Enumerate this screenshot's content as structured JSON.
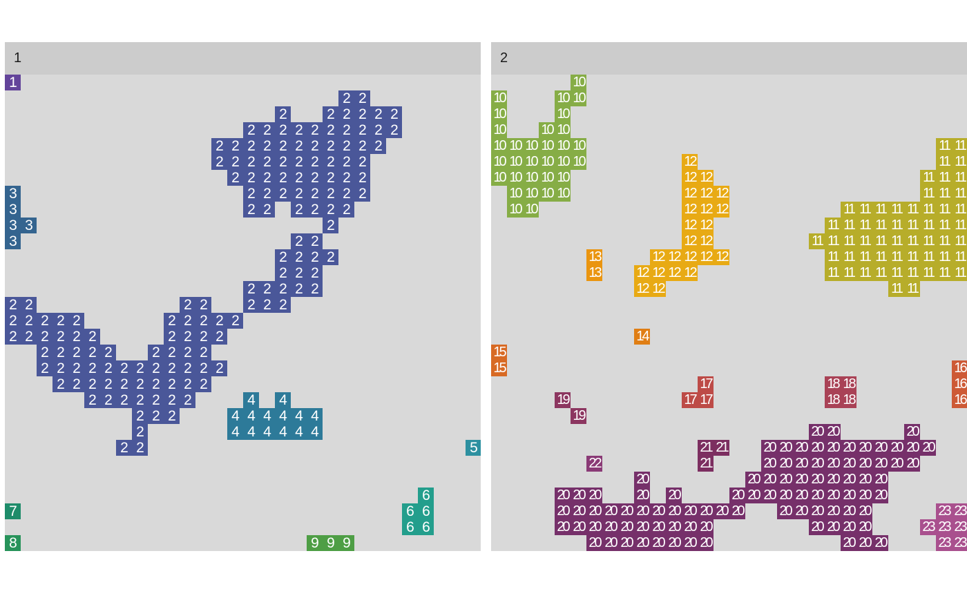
{
  "panels": [
    {
      "label": "1",
      "groups": [
        {
          "label": "1",
          "color": "#63449a",
          "rows": [
            [
              0,
              [
                0
              ]
            ]
          ]
        },
        {
          "label": "2",
          "color": "#4a5799",
          "rows": [
            [
              1,
              [
                21,
                22
              ]
            ],
            [
              2,
              [
                17,
                20,
                21,
                22,
                23,
                24
              ]
            ],
            [
              3,
              [
                15,
                16,
                17,
                18,
                19,
                20,
                21,
                22,
                23,
                24
              ]
            ],
            [
              4,
              [
                13,
                14,
                15,
                16,
                17,
                18,
                19,
                20,
                21,
                22,
                23
              ]
            ],
            [
              5,
              [
                13,
                14,
                15,
                16,
                17,
                18,
                19,
                20,
                21,
                22
              ]
            ],
            [
              6,
              [
                14,
                15,
                16,
                17,
                18,
                19,
                20,
                21,
                22
              ]
            ],
            [
              7,
              [
                15,
                16,
                17,
                18,
                19,
                20,
                21,
                22
              ]
            ],
            [
              8,
              [
                15,
                16,
                18,
                19,
                20,
                21
              ]
            ],
            [
              9,
              [
                20
              ]
            ],
            [
              10,
              [
                18,
                19
              ]
            ],
            [
              11,
              [
                17,
                18,
                19,
                20
              ]
            ],
            [
              12,
              [
                17,
                18,
                19
              ]
            ],
            [
              13,
              [
                15,
                16,
                17,
                18,
                19
              ]
            ],
            [
              14,
              [
                0,
                1,
                11,
                12,
                15,
                16,
                17
              ]
            ],
            [
              15,
              [
                0,
                1,
                2,
                3,
                4,
                10,
                11,
                12,
                13,
                14
              ]
            ],
            [
              16,
              [
                0,
                1,
                2,
                3,
                4,
                5,
                10,
                11,
                12,
                13
              ]
            ],
            [
              17,
              [
                2,
                3,
                4,
                5,
                6,
                9,
                10,
                11,
                12
              ]
            ],
            [
              18,
              [
                2,
                3,
                4,
                5,
                6,
                7,
                8,
                9,
                10,
                11,
                12,
                13
              ]
            ],
            [
              19,
              [
                3,
                4,
                5,
                6,
                7,
                8,
                9,
                10,
                11,
                12
              ]
            ],
            [
              20,
              [
                5,
                6,
                7,
                8,
                9,
                10,
                11
              ]
            ],
            [
              21,
              [
                8,
                9,
                10
              ]
            ],
            [
              22,
              [
                8
              ]
            ],
            [
              23,
              [
                7,
                8
              ]
            ]
          ]
        },
        {
          "label": "3",
          "color": "#34648f",
          "rows": [
            [
              7,
              [
                0
              ]
            ],
            [
              8,
              [
                0
              ]
            ],
            [
              9,
              [
                0,
                1
              ]
            ],
            [
              10,
              [
                0
              ]
            ]
          ]
        },
        {
          "label": "4",
          "color": "#2d7a99",
          "rows": [
            [
              20,
              [
                15,
                17
              ]
            ],
            [
              21,
              [
                14,
                15,
                16,
                17,
                18,
                19
              ]
            ],
            [
              22,
              [
                14,
                15,
                16,
                17,
                18,
                19
              ]
            ]
          ]
        },
        {
          "label": "5",
          "color": "#2d90a0",
          "rows": [
            [
              23,
              [
                29
              ]
            ]
          ]
        },
        {
          "label": "6",
          "color": "#239e8c",
          "rows": [
            [
              26,
              [
                26
              ]
            ],
            [
              27,
              [
                25,
                26
              ]
            ],
            [
              28,
              [
                25,
                26
              ]
            ]
          ]
        },
        {
          "label": "7",
          "color": "#1e8c6a",
          "rows": [
            [
              27,
              [
                0
              ]
            ]
          ]
        },
        {
          "label": "8",
          "color": "#27935a",
          "rows": [
            [
              29,
              [
                0
              ]
            ]
          ]
        },
        {
          "label": "9",
          "color": "#4e9e45",
          "rows": [
            [
              29,
              [
                19,
                20,
                21
              ]
            ]
          ]
        }
      ]
    },
    {
      "label": "2",
      "groups": [
        {
          "label": "10",
          "color": "#86ad46",
          "rows": [
            [
              0,
              [
                5
              ]
            ],
            [
              1,
              [
                0,
                4,
                5
              ]
            ],
            [
              2,
              [
                0,
                4
              ]
            ],
            [
              3,
              [
                0,
                3,
                4
              ]
            ],
            [
              4,
              [
                0,
                1,
                2,
                3,
                4,
                5
              ]
            ],
            [
              5,
              [
                0,
                1,
                2,
                3,
                4,
                5
              ]
            ],
            [
              6,
              [
                0,
                1,
                2,
                3,
                4
              ]
            ],
            [
              7,
              [
                1,
                2,
                3,
                4
              ]
            ],
            [
              8,
              [
                1,
                2
              ]
            ]
          ]
        },
        {
          "label": "11",
          "color": "#b7ad2a",
          "rows": [
            [
              4,
              [
                28,
                29,
                30
              ]
            ],
            [
              5,
              [
                28,
                29,
                30
              ]
            ],
            [
              6,
              [
                27,
                28,
                29,
                30
              ]
            ],
            [
              7,
              [
                27,
                28,
                29,
                30
              ]
            ],
            [
              8,
              [
                22,
                23,
                24,
                25,
                26,
                27,
                28,
                29,
                30
              ]
            ],
            [
              9,
              [
                21,
                22,
                23,
                24,
                25,
                26,
                27,
                28,
                29,
                30
              ]
            ],
            [
              10,
              [
                20,
                21,
                22,
                23,
                24,
                25,
                26,
                27,
                28,
                29,
                30
              ]
            ],
            [
              11,
              [
                21,
                22,
                23,
                24,
                25,
                26,
                27,
                28,
                29,
                30
              ]
            ],
            [
              12,
              [
                21,
                22,
                23,
                24,
                25,
                26,
                27,
                28,
                29,
                30
              ]
            ],
            [
              13,
              [
                25,
                26
              ]
            ]
          ]
        },
        {
          "label": "12",
          "color": "#e8aa14",
          "rows": [
            [
              5,
              [
                12
              ]
            ],
            [
              6,
              [
                12,
                13
              ]
            ],
            [
              7,
              [
                12,
                13,
                14
              ]
            ],
            [
              8,
              [
                12,
                13,
                14
              ]
            ],
            [
              9,
              [
                12,
                13
              ]
            ],
            [
              10,
              [
                12,
                13
              ]
            ],
            [
              11,
              [
                10,
                11,
                12,
                13,
                14
              ]
            ],
            [
              12,
              [
                9,
                10,
                11,
                12
              ]
            ],
            [
              13,
              [
                9,
                10
              ]
            ]
          ]
        },
        {
          "label": "13",
          "color": "#ea9510",
          "rows": [
            [
              11,
              [
                6
              ]
            ],
            [
              12,
              [
                6
              ]
            ]
          ]
        },
        {
          "label": "14",
          "color": "#e07e14",
          "rows": [
            [
              16,
              [
                9
              ]
            ]
          ]
        },
        {
          "label": "15",
          "color": "#d86a24",
          "rows": [
            [
              17,
              [
                0
              ]
            ],
            [
              18,
              [
                0
              ]
            ]
          ]
        },
        {
          "label": "16",
          "color": "#cd5a36",
          "rows": [
            [
              18,
              [
                29
              ]
            ],
            [
              19,
              [
                29
              ]
            ],
            [
              20,
              [
                29
              ]
            ]
          ]
        },
        {
          "label": "17",
          "color": "#bd4b47",
          "rows": [
            [
              19,
              [
                13
              ]
            ],
            [
              20,
              [
                12,
                13
              ]
            ]
          ]
        },
        {
          "label": "18",
          "color": "#a94256",
          "rows": [
            [
              19,
              [
                21,
                22
              ]
            ],
            [
              20,
              [
                21,
                22
              ]
            ]
          ]
        },
        {
          "label": "19",
          "color": "#8c3660",
          "rows": [
            [
              20,
              [
                4
              ]
            ],
            [
              21,
              [
                5
              ]
            ]
          ]
        },
        {
          "label": "20",
          "color": "#76306a",
          "rows": [
            [
              22,
              [
                20,
                21,
                26
              ]
            ],
            [
              23,
              [
                17,
                18,
                19,
                20,
                21,
                22,
                23,
                24,
                25,
                26,
                27
              ]
            ],
            [
              24,
              [
                17,
                18,
                19,
                20,
                21,
                22,
                23,
                24,
                25,
                26
              ]
            ],
            [
              25,
              [
                9,
                16,
                17,
                18,
                19,
                20,
                21,
                22,
                23,
                24
              ]
            ],
            [
              26,
              [
                4,
                5,
                6,
                9,
                11,
                15,
                16,
                17,
                18,
                19,
                20,
                21,
                22,
                23,
                24
              ]
            ],
            [
              27,
              [
                4,
                5,
                6,
                7,
                8,
                9,
                10,
                11,
                12,
                13,
                14,
                15,
                18,
                19,
                20,
                21,
                22,
                23
              ]
            ],
            [
              28,
              [
                4,
                5,
                6,
                7,
                8,
                9,
                10,
                11,
                12,
                13,
                20,
                21,
                22,
                23
              ]
            ],
            [
              29,
              [
                6,
                7,
                8,
                9,
                10,
                11,
                12,
                13,
                22,
                23,
                24
              ]
            ]
          ]
        },
        {
          "label": "21",
          "color": "#7c2e60",
          "rows": [
            [
              23,
              [
                13,
                14
              ]
            ],
            [
              24,
              [
                13
              ]
            ]
          ]
        },
        {
          "label": "22",
          "color": "#8a3a76",
          "rows": [
            [
              24,
              [
                6
              ]
            ]
          ]
        },
        {
          "label": "23",
          "color": "#a9508e",
          "rows": [
            [
              27,
              [
                28,
                29
              ]
            ],
            [
              28,
              [
                27,
                28,
                29
              ]
            ],
            [
              29,
              [
                28,
                29
              ]
            ]
          ]
        }
      ]
    }
  ]
}
